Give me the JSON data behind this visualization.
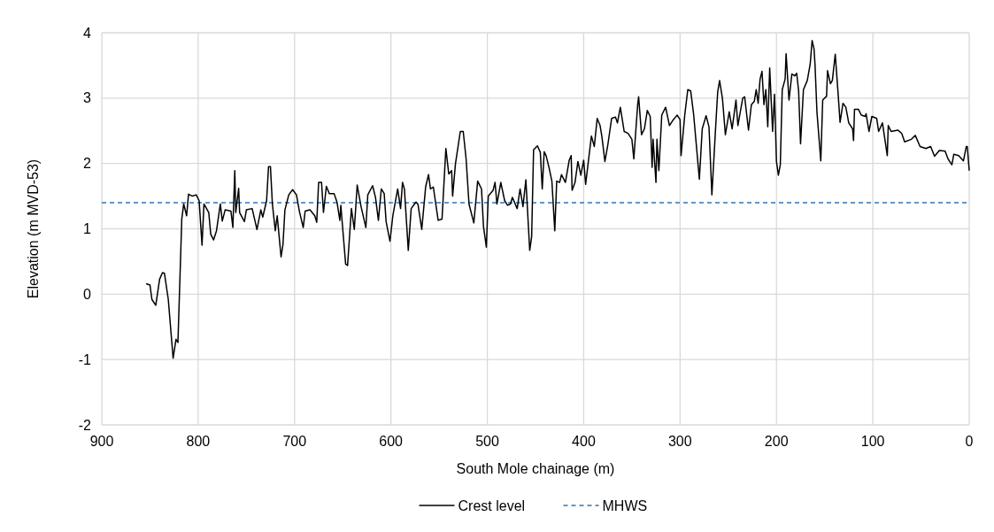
{
  "chart_data": {
    "type": "line",
    "xlabel": "South Mole chainage (m)",
    "ylabel": "Elevation (m MVD-53)",
    "xlim": [
      900,
      0
    ],
    "xticks": [
      900,
      800,
      700,
      600,
      500,
      400,
      300,
      200,
      100,
      0
    ],
    "ylim": [
      -2,
      4
    ],
    "yticks": [
      -2,
      -1,
      0,
      1,
      2,
      3,
      4
    ],
    "grid": true,
    "legend": "bottom",
    "line_style": "solid",
    "ref_lines": [
      {
        "axis": "y",
        "value": 1.4,
        "label": "MHWS",
        "color": "#2e75b6",
        "line_style": "dashed"
      }
    ],
    "series": [
      {
        "name": "Crest level",
        "color": "#000000",
        "x": [
          854,
          850,
          848,
          844,
          840,
          837,
          835,
          831,
          826,
          823,
          821,
          817,
          815,
          812,
          810,
          806,
          802,
          799,
          796,
          794,
          789,
          787,
          784,
          781,
          777,
          775,
          772,
          766,
          764,
          762,
          761,
          758,
          757,
          752,
          750,
          744,
          739,
          735,
          733,
          729,
          727,
          725,
          723,
          720,
          718,
          714,
          712,
          710,
          706,
          702,
          698,
          695,
          691,
          689,
          684,
          679,
          677,
          675,
          672,
          670,
          667,
          664,
          659,
          656,
          653,
          652,
          647,
          645,
          641,
          638,
          635,
          631,
          626,
          624,
          619,
          616,
          613,
          610,
          607,
          605,
          601,
          598,
          593,
          590,
          588,
          586,
          582,
          579,
          574,
          572,
          568,
          564,
          561,
          559,
          556,
          551,
          547,
          543,
          540,
          537,
          536,
          533,
          528,
          525,
          522,
          519,
          514,
          510,
          506,
          504,
          501,
          499,
          494,
          492,
          490,
          486,
          482,
          479,
          476,
          474,
          469,
          466,
          463,
          460,
          456,
          454,
          452,
          448,
          445,
          443,
          441,
          439,
          436,
          433,
          430,
          428,
          425,
          423,
          419,
          415,
          413,
          412,
          409,
          406,
          403,
          400,
          398,
          395,
          392,
          389,
          386,
          383,
          381,
          378,
          375,
          371,
          367,
          365,
          362,
          358,
          354,
          350,
          348,
          344,
          343,
          340,
          337,
          334,
          331,
          329,
          328,
          325,
          324,
          322,
          319,
          315,
          311,
          307,
          303,
          300,
          299,
          295,
          292,
          289,
          286,
          280,
          277,
          273,
          270,
          267,
          263,
          261,
          259,
          256,
          253,
          249,
          246,
          242,
          240,
          235,
          233,
          229,
          226,
          223,
          221,
          219,
          217,
          215,
          213,
          211,
          209,
          207,
          204,
          202,
          200,
          198,
          196,
          194,
          191,
          190,
          187,
          184,
          181,
          179,
          177,
          175,
          172,
          168,
          165,
          163,
          161,
          160,
          158,
          154,
          152,
          148,
          147,
          144,
          142,
          139,
          136,
          134,
          131,
          128,
          125,
          121,
          120,
          119,
          115,
          112,
          108,
          107,
          104,
          101,
          96,
          94,
          90,
          85,
          84,
          81,
          74,
          70,
          67,
          60,
          56,
          51,
          45,
          40,
          36,
          31,
          25,
          22,
          18,
          16,
          11,
          6,
          3,
          2,
          0
        ],
        "values": [
          0.16,
          0.14,
          -0.08,
          -0.17,
          0.23,
          0.33,
          0.32,
          -0.08,
          -0.98,
          -0.69,
          -0.74,
          1.15,
          1.38,
          1.2,
          1.53,
          1.5,
          1.52,
          1.43,
          0.75,
          1.38,
          1.25,
          0.92,
          0.83,
          0.97,
          1.38,
          1.12,
          1.29,
          1.27,
          1.02,
          1.89,
          1.25,
          1.62,
          1.25,
          1.11,
          1.29,
          1.31,
          0.99,
          1.29,
          1.18,
          1.43,
          1.95,
          1.95,
          1.38,
          0.97,
          1.2,
          0.57,
          0.76,
          1.29,
          1.52,
          1.6,
          1.52,
          1.27,
          1.02,
          1.27,
          1.29,
          1.2,
          1.1,
          1.71,
          1.71,
          1.25,
          1.65,
          1.54,
          1.54,
          1.41,
          1.13,
          1.36,
          0.46,
          0.44,
          1.31,
          0.99,
          1.67,
          1.34,
          1.02,
          1.52,
          1.66,
          1.48,
          1.13,
          1.61,
          1.54,
          1.11,
          0.81,
          1.2,
          1.61,
          1.31,
          1.71,
          1.61,
          0.67,
          1.31,
          1.41,
          1.38,
          0.99,
          1.64,
          1.83,
          1.61,
          1.64,
          1.13,
          1.15,
          2.23,
          1.84,
          1.89,
          1.5,
          2.0,
          2.49,
          2.49,
          2.07,
          1.38,
          1.09,
          1.73,
          1.61,
          1.04,
          0.72,
          1.5,
          1.59,
          1.71,
          1.38,
          1.71,
          1.43,
          1.36,
          1.38,
          1.48,
          1.31,
          1.61,
          1.34,
          1.75,
          0.67,
          0.88,
          2.21,
          2.27,
          2.17,
          1.61,
          2.18,
          2.12,
          1.94,
          1.73,
          0.97,
          1.73,
          1.71,
          1.83,
          1.71,
          2.05,
          2.12,
          1.59,
          1.71,
          2.03,
          1.82,
          2.05,
          1.68,
          2.05,
          2.42,
          2.26,
          2.69,
          2.58,
          2.4,
          2.03,
          2.28,
          2.69,
          2.71,
          2.62,
          2.86,
          2.49,
          2.46,
          2.37,
          2.07,
          2.9,
          3.02,
          2.44,
          2.53,
          2.81,
          2.72,
          1.94,
          2.37,
          1.71,
          2.37,
          1.89,
          2.74,
          2.86,
          2.58,
          2.67,
          2.74,
          2.67,
          2.12,
          2.76,
          3.13,
          3.11,
          2.76,
          1.76,
          2.53,
          2.73,
          2.56,
          1.52,
          2.58,
          3.09,
          3.27,
          2.99,
          2.44,
          2.79,
          2.53,
          2.97,
          2.58,
          3.0,
          3.02,
          2.51,
          2.9,
          2.95,
          3.13,
          2.92,
          3.29,
          3.41,
          2.9,
          3.13,
          2.56,
          3.46,
          2.49,
          3.06,
          2.03,
          1.82,
          1.98,
          3.13,
          3.29,
          3.68,
          2.97,
          3.37,
          3.34,
          3.38,
          3.11,
          2.3,
          3.13,
          3.27,
          3.52,
          3.88,
          3.75,
          3.52,
          2.79,
          2.04,
          2.97,
          3.03,
          3.42,
          3.22,
          3.27,
          3.67,
          3.06,
          2.63,
          2.92,
          2.86,
          2.62,
          2.53,
          2.35,
          2.83,
          2.83,
          2.74,
          2.72,
          2.76,
          2.49,
          2.72,
          2.69,
          2.49,
          2.62,
          2.12,
          2.58,
          2.49,
          2.51,
          2.46,
          2.33,
          2.37,
          2.43,
          2.26,
          2.23,
          2.26,
          2.11,
          2.2,
          2.19,
          2.07,
          1.98,
          2.14,
          2.12,
          2.04,
          2.26,
          2.26,
          1.89
        ]
      }
    ]
  }
}
